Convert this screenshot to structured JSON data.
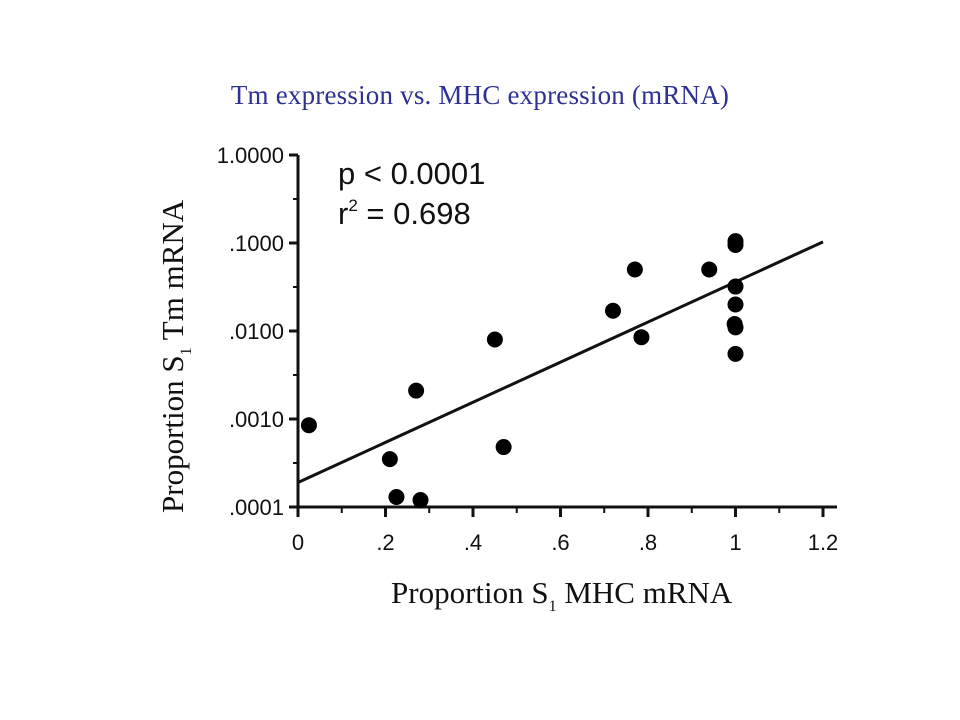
{
  "slide": {
    "title": "Tm expression vs. MHC expression (mRNA)"
  },
  "chart_data": {
    "type": "scatter",
    "xlabel": {
      "main": "Proportion S",
      "sub": "1",
      "rest": " MHC mRNA"
    },
    "ylabel": {
      "main": "Proportion S",
      "sub": "1",
      "rest": " Tm mRNA"
    },
    "xlim": [
      0,
      1.2
    ],
    "ylim": [
      0.0001,
      1.0
    ],
    "y_scale": "log",
    "x_ticks": [
      {
        "value": 0,
        "label": "0"
      },
      {
        "value": 0.2,
        "label": ".2"
      },
      {
        "value": 0.4,
        "label": ".4"
      },
      {
        "value": 0.6,
        "label": ".6"
      },
      {
        "value": 0.8,
        "label": ".8"
      },
      {
        "value": 1.0,
        "label": "1"
      },
      {
        "value": 1.2,
        "label": "1.2"
      }
    ],
    "y_ticks": [
      {
        "value": 1.0,
        "label": "1.0000"
      },
      {
        "value": 0.1,
        "label": ".1000"
      },
      {
        "value": 0.01,
        "label": ".0100"
      },
      {
        "value": 0.001,
        "label": ".0010"
      },
      {
        "value": 0.0001,
        "label": ".0001"
      }
    ],
    "annotations": {
      "p_value": "p < 0.0001",
      "r2_base": "r",
      "r2_sup": "2",
      "r2_rest": " = 0.698"
    },
    "grid": false,
    "legend": "none",
    "marker_color": "#000000",
    "points": [
      {
        "x": 0.025,
        "y": 0.00085
      },
      {
        "x": 0.21,
        "y": 0.00035
      },
      {
        "x": 0.225,
        "y": 0.00013
      },
      {
        "x": 0.27,
        "y": 0.0021
      },
      {
        "x": 0.28,
        "y": 0.00012
      },
      {
        "x": 0.45,
        "y": 0.008
      },
      {
        "x": 0.47,
        "y": 0.00048
      },
      {
        "x": 0.72,
        "y": 0.017
      },
      {
        "x": 0.77,
        "y": 0.05
      },
      {
        "x": 0.785,
        "y": 0.0085
      },
      {
        "x": 0.94,
        "y": 0.05
      },
      {
        "x": 1.0,
        "y": 0.105
      },
      {
        "x": 1.0,
        "y": 0.095
      },
      {
        "x": 1.0,
        "y": 0.032
      },
      {
        "x": 1.0,
        "y": 0.02
      },
      {
        "x": 0.998,
        "y": 0.012
      },
      {
        "x": 1.0,
        "y": 0.011
      },
      {
        "x": 1.0,
        "y": 0.0055
      }
    ],
    "fit_line": {
      "x": [
        0,
        1.2
      ],
      "y": [
        0.00019,
        0.103
      ]
    }
  }
}
